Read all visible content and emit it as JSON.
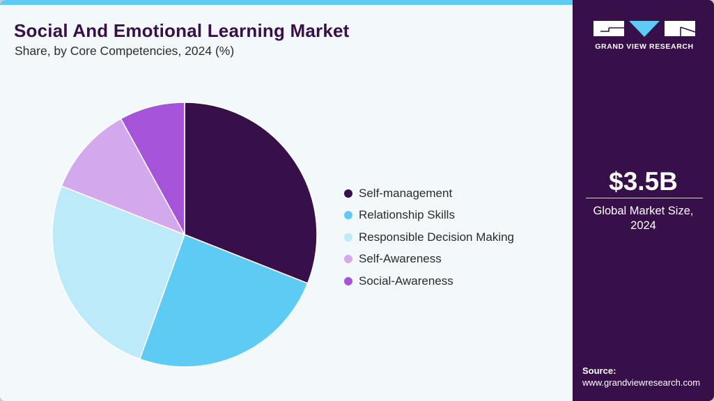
{
  "header": {
    "title": "Social And Emotional Learning Market",
    "subtitle": "Share, by Core Competencies, 2024 (%)"
  },
  "brand": {
    "name": "GRAND VIEW RESEARCH",
    "colors": {
      "sidebar": "#37104a",
      "accent": "#5ecbf5",
      "background": "#f3f8fb"
    }
  },
  "stats": {
    "market_size": "$3.5B",
    "market_caption_line1": "Global Market Size,",
    "market_caption_line2": "2024"
  },
  "source": {
    "label": "Source:",
    "url": "www.grandviewresearch.com"
  },
  "legend": [
    {
      "label": "Self-management",
      "color": "#37104a"
    },
    {
      "label": "Relationship Skills",
      "color": "#5ecbf5"
    },
    {
      "label": "Responsible Decision Making",
      "color": "#bdeaf9"
    },
    {
      "label": "Self-Awareness",
      "color": "#d4a8ec"
    },
    {
      "label": "Social-Awareness",
      "color": "#a553d8"
    }
  ],
  "chart_data": {
    "type": "pie",
    "title": "Social And Emotional Learning Market",
    "subtitle": "Share, by Core Competencies, 2024 (%)",
    "categories": [
      "Self-management",
      "Relationship Skills",
      "Responsible Decision Making",
      "Self-Awareness",
      "Social-Awareness"
    ],
    "values": [
      31,
      24.5,
      25.5,
      11,
      8
    ],
    "colors": [
      "#37104a",
      "#5ecbf5",
      "#bdeaf9",
      "#d4a8ec",
      "#a553d8"
    ],
    "start_angle_deg": 0,
    "direction": "clockwise",
    "legend_position": "right",
    "data_labels": false
  }
}
